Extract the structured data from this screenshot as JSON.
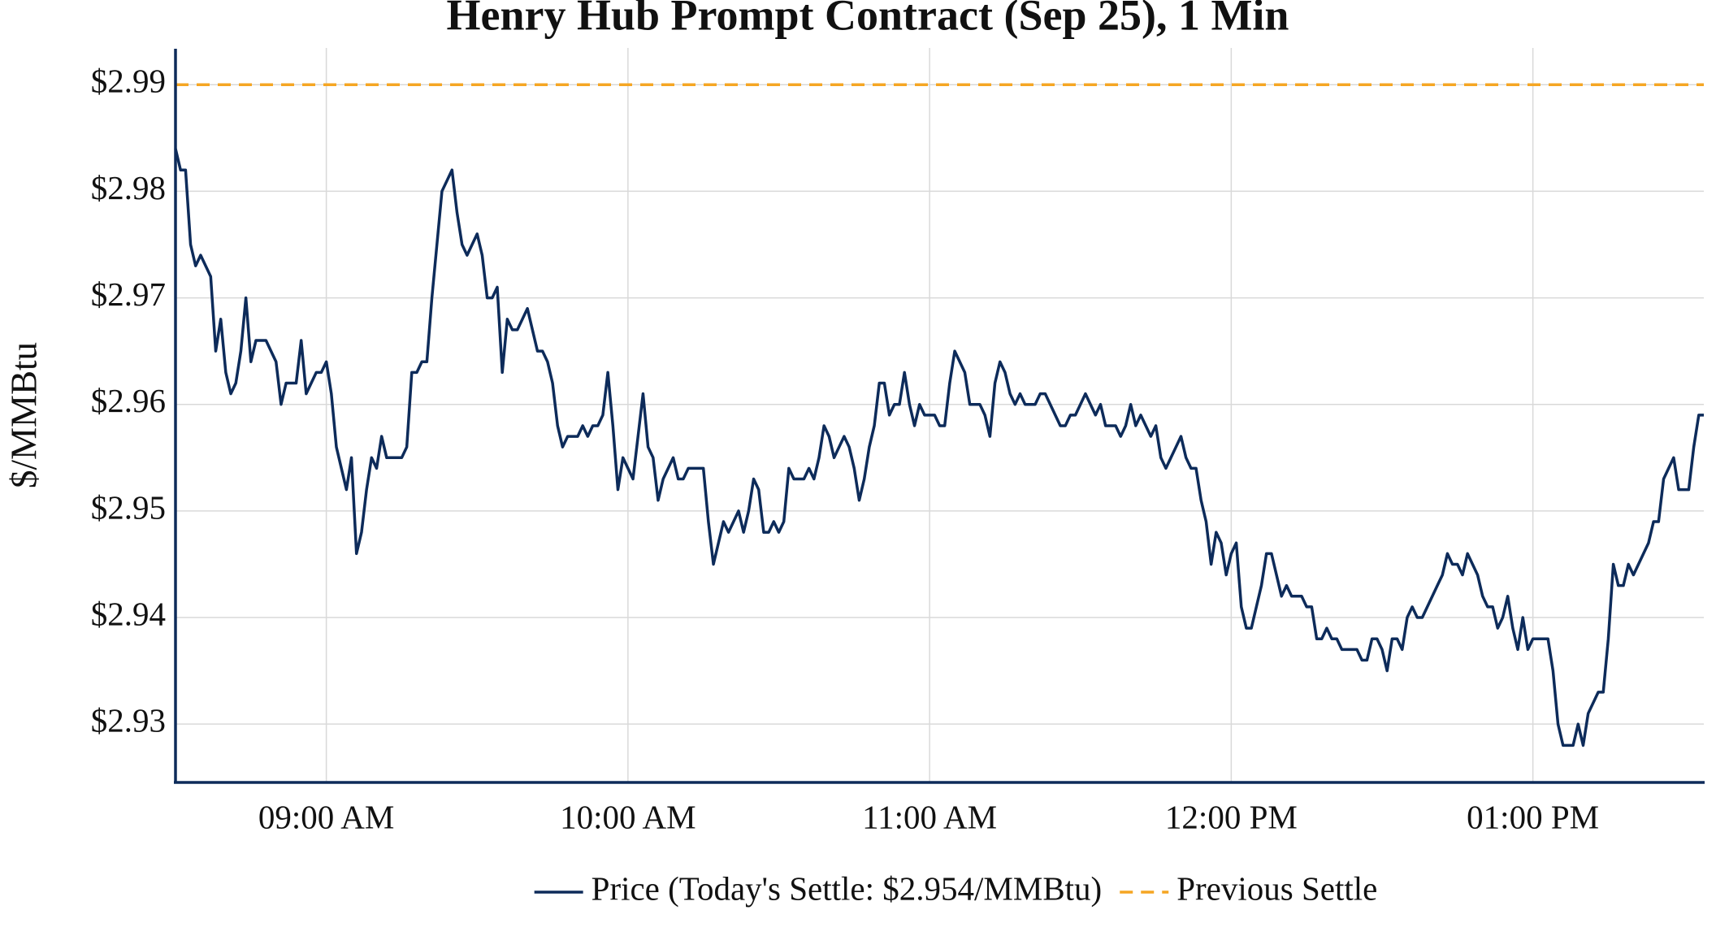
{
  "chart_data": {
    "type": "line",
    "title": "Henry Hub Prompt Contract (Sep 25), 1 Min",
    "y_label": "$/MMBtu",
    "grid": true,
    "legend": "bottom",
    "xlim": [
      "08:30",
      "13:34"
    ],
    "xticks": [
      {
        "value": "09:00",
        "label": "09:00 AM"
      },
      {
        "value": "10:00",
        "label": "10:00 AM"
      },
      {
        "value": "11:00",
        "label": "11:00 AM"
      },
      {
        "value": "12:00",
        "label": "12:00 PM"
      },
      {
        "value": "13:00",
        "label": "01:00 PM"
      }
    ],
    "ylim": [
      2.9246,
      2.9933
    ],
    "yticks": [
      {
        "value": 2.93,
        "label": "$2.93"
      },
      {
        "value": 2.94,
        "label": "$2.94"
      },
      {
        "value": 2.95,
        "label": "$2.95"
      },
      {
        "value": 2.96,
        "label": "$2.96"
      },
      {
        "value": 2.97,
        "label": "$2.97"
      },
      {
        "value": 2.98,
        "label": "$2.98"
      },
      {
        "value": 2.99,
        "label": "$2.99"
      }
    ],
    "reference_lines": [
      {
        "name": "Previous Settle",
        "value": 2.99,
        "color": "#f5a623",
        "dashed": true
      }
    ],
    "x": [
      "08:30",
      "08:31",
      "08:32",
      "08:33",
      "08:34",
      "08:35",
      "08:36",
      "08:37",
      "08:38",
      "08:39",
      "08:40",
      "08:41",
      "08:42",
      "08:43",
      "08:44",
      "08:45",
      "08:46",
      "08:47",
      "08:48",
      "08:49",
      "08:50",
      "08:51",
      "08:52",
      "08:53",
      "08:54",
      "08:55",
      "08:56",
      "08:57",
      "08:58",
      "08:59",
      "09:00",
      "09:01",
      "09:02",
      "09:03",
      "09:04",
      "09:05",
      "09:06",
      "09:07",
      "09:08",
      "09:09",
      "09:10",
      "09:11",
      "09:12",
      "09:13",
      "09:14",
      "09:15",
      "09:16",
      "09:17",
      "09:18",
      "09:19",
      "09:20",
      "09:21",
      "09:22",
      "09:23",
      "09:24",
      "09:25",
      "09:26",
      "09:27",
      "09:28",
      "09:29",
      "09:30",
      "09:31",
      "09:32",
      "09:33",
      "09:34",
      "09:35",
      "09:36",
      "09:37",
      "09:38",
      "09:39",
      "09:40",
      "09:41",
      "09:42",
      "09:43",
      "09:44",
      "09:45",
      "09:46",
      "09:47",
      "09:48",
      "09:49",
      "09:50",
      "09:51",
      "09:52",
      "09:53",
      "09:54",
      "09:55",
      "09:56",
      "09:57",
      "09:58",
      "09:59",
      "10:00",
      "10:01",
      "10:02",
      "10:03",
      "10:04",
      "10:05",
      "10:06",
      "10:07",
      "10:08",
      "10:09",
      "10:10",
      "10:11",
      "10:12",
      "10:13",
      "10:14",
      "10:15",
      "10:16",
      "10:17",
      "10:18",
      "10:19",
      "10:20",
      "10:21",
      "10:22",
      "10:23",
      "10:24",
      "10:25",
      "10:26",
      "10:27",
      "10:28",
      "10:29",
      "10:30",
      "10:31",
      "10:32",
      "10:33",
      "10:34",
      "10:35",
      "10:36",
      "10:37",
      "10:38",
      "10:39",
      "10:40",
      "10:41",
      "10:42",
      "10:43",
      "10:44",
      "10:45",
      "10:46",
      "10:47",
      "10:48",
      "10:49",
      "10:50",
      "10:51",
      "10:52",
      "10:53",
      "10:54",
      "10:55",
      "10:56",
      "10:57",
      "10:58",
      "10:59",
      "11:00",
      "11:01",
      "11:02",
      "11:03",
      "11:04",
      "11:05",
      "11:06",
      "11:07",
      "11:08",
      "11:09",
      "11:10",
      "11:11",
      "11:12",
      "11:13",
      "11:14",
      "11:15",
      "11:16",
      "11:17",
      "11:18",
      "11:19",
      "11:20",
      "11:21",
      "11:22",
      "11:23",
      "11:24",
      "11:25",
      "11:26",
      "11:27",
      "11:28",
      "11:29",
      "11:30",
      "11:31",
      "11:32",
      "11:33",
      "11:34",
      "11:35",
      "11:36",
      "11:37",
      "11:38",
      "11:39",
      "11:40",
      "11:41",
      "11:42",
      "11:43",
      "11:44",
      "11:45",
      "11:46",
      "11:47",
      "11:48",
      "11:49",
      "11:50",
      "11:51",
      "11:52",
      "11:53",
      "11:54",
      "11:55",
      "11:56",
      "11:57",
      "11:58",
      "11:59",
      "12:00",
      "12:01",
      "12:02",
      "12:03",
      "12:04",
      "12:05",
      "12:06",
      "12:07",
      "12:08",
      "12:09",
      "12:10",
      "12:11",
      "12:12",
      "12:13",
      "12:14",
      "12:15",
      "12:16",
      "12:17",
      "12:18",
      "12:19",
      "12:20",
      "12:21",
      "12:22",
      "12:23",
      "12:24",
      "12:25",
      "12:26",
      "12:27",
      "12:28",
      "12:29",
      "12:30",
      "12:31",
      "12:32",
      "12:33",
      "12:34",
      "12:35",
      "12:36",
      "12:37",
      "12:38",
      "12:39",
      "12:40",
      "12:41",
      "12:42",
      "12:43",
      "12:44",
      "12:45",
      "12:46",
      "12:47",
      "12:48",
      "12:49",
      "12:50",
      "12:51",
      "12:52",
      "12:53",
      "12:54",
      "12:55",
      "12:56",
      "12:57",
      "12:58",
      "12:59",
      "13:00",
      "13:01",
      "13:02",
      "13:03",
      "13:04",
      "13:05",
      "13:06",
      "13:07",
      "13:08",
      "13:09",
      "13:10",
      "13:11",
      "13:12",
      "13:13",
      "13:14",
      "13:15",
      "13:16",
      "13:17",
      "13:18",
      "13:19",
      "13:20",
      "13:21",
      "13:22",
      "13:23",
      "13:24",
      "13:25",
      "13:26",
      "13:27",
      "13:28",
      "13:29",
      "13:30",
      "13:31",
      "13:32",
      "13:33",
      "13:34"
    ],
    "series": [
      {
        "name": "Price (Today's Settle: $2.954/MMBtu)",
        "color": "#0d2b5a",
        "values": [
          2.984,
          2.982,
          2.982,
          2.975,
          2.973,
          2.974,
          2.973,
          2.972,
          2.965,
          2.968,
          2.963,
          2.961,
          2.962,
          2.965,
          2.97,
          2.964,
          2.966,
          2.966,
          2.966,
          2.965,
          2.964,
          2.96,
          2.962,
          2.962,
          2.962,
          2.966,
          2.961,
          2.962,
          2.963,
          2.963,
          2.964,
          2.961,
          2.956,
          2.954,
          2.952,
          2.955,
          2.946,
          2.948,
          2.952,
          2.955,
          2.954,
          2.957,
          2.955,
          2.955,
          2.955,
          2.955,
          2.956,
          2.963,
          2.963,
          2.964,
          2.964,
          2.97,
          2.975,
          2.98,
          2.981,
          2.982,
          2.978,
          2.975,
          2.974,
          2.975,
          2.976,
          2.974,
          2.97,
          2.97,
          2.971,
          2.963,
          2.968,
          2.967,
          2.967,
          2.968,
          2.969,
          2.967,
          2.965,
          2.965,
          2.964,
          2.962,
          2.958,
          2.956,
          2.957,
          2.957,
          2.957,
          2.958,
          2.957,
          2.958,
          2.958,
          2.959,
          2.963,
          2.958,
          2.952,
          2.955,
          2.954,
          2.953,
          2.957,
          2.961,
          2.956,
          2.955,
          2.951,
          2.953,
          2.954,
          2.955,
          2.953,
          2.953,
          2.954,
          2.954,
          2.954,
          2.954,
          2.949,
          2.945,
          2.947,
          2.949,
          2.948,
          2.949,
          2.95,
          2.948,
          2.95,
          2.953,
          2.952,
          2.948,
          2.948,
          2.949,
          2.948,
          2.949,
          2.954,
          2.953,
          2.953,
          2.953,
          2.954,
          2.953,
          2.955,
          2.958,
          2.957,
          2.955,
          2.956,
          2.957,
          2.956,
          2.954,
          2.951,
          2.953,
          2.956,
          2.958,
          2.962,
          2.962,
          2.959,
          2.96,
          2.96,
          2.963,
          2.96,
          2.958,
          2.96,
          2.959,
          2.959,
          2.959,
          2.958,
          2.958,
          2.962,
          2.965,
          2.964,
          2.963,
          2.96,
          2.96,
          2.96,
          2.959,
          2.957,
          2.962,
          2.964,
          2.963,
          2.961,
          2.96,
          2.961,
          2.96,
          2.96,
          2.96,
          2.961,
          2.961,
          2.96,
          2.959,
          2.958,
          2.958,
          2.959,
          2.959,
          2.96,
          2.961,
          2.96,
          2.959,
          2.96,
          2.958,
          2.958,
          2.958,
          2.957,
          2.958,
          2.96,
          2.958,
          2.959,
          2.958,
          2.957,
          2.958,
          2.955,
          2.954,
          2.955,
          2.956,
          2.957,
          2.955,
          2.954,
          2.954,
          2.951,
          2.949,
          2.945,
          2.948,
          2.947,
          2.944,
          2.946,
          2.947,
          2.941,
          2.939,
          2.939,
          2.941,
          2.943,
          2.946,
          2.946,
          2.944,
          2.942,
          2.943,
          2.942,
          2.942,
          2.942,
          2.941,
          2.941,
          2.938,
          2.938,
          2.939,
          2.938,
          2.938,
          2.937,
          2.937,
          2.937,
          2.937,
          2.936,
          2.936,
          2.938,
          2.938,
          2.937,
          2.935,
          2.938,
          2.938,
          2.937,
          2.94,
          2.941,
          2.94,
          2.94,
          2.941,
          2.942,
          2.943,
          2.944,
          2.946,
          2.945,
          2.945,
          2.944,
          2.946,
          2.945,
          2.944,
          2.942,
          2.941,
          2.941,
          2.939,
          2.94,
          2.942,
          2.939,
          2.937,
          2.94,
          2.937,
          2.938,
          2.938,
          2.938,
          2.938,
          2.935,
          2.93,
          2.928,
          2.928,
          2.928,
          2.93,
          2.928,
          2.931,
          2.932,
          2.933,
          2.933,
          2.938,
          2.945,
          2.943,
          2.943,
          2.945,
          2.944,
          2.945,
          2.946,
          2.947,
          2.949,
          2.949,
          2.953,
          2.954,
          2.955,
          2.952,
          2.952,
          2.952,
          2.956,
          2.959,
          2.959
        ]
      }
    ]
  }
}
